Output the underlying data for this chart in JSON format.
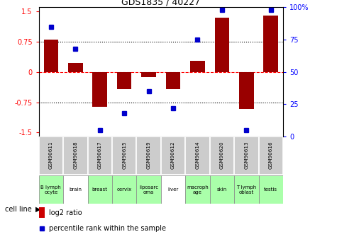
{
  "title": "GDS1835 / 40227",
  "samples": [
    "GSM90611",
    "GSM90618",
    "GSM90617",
    "GSM90615",
    "GSM90619",
    "GSM90612",
    "GSM90614",
    "GSM90620",
    "GSM90613",
    "GSM90616"
  ],
  "cell_lines": [
    "B lymph\nocyte",
    "brain",
    "breast",
    "cervix",
    "liposarc\noma",
    "liver",
    "macroph\nage",
    "skin",
    "T lymph\noblast",
    "testis"
  ],
  "cell_line_colors": [
    "#aaffaa",
    "#ffffff",
    "#aaffaa",
    "#aaffaa",
    "#aaffaa",
    "#ffffff",
    "#aaffaa",
    "#aaffaa",
    "#aaffaa",
    "#aaffaa"
  ],
  "log2_ratio": [
    0.8,
    0.22,
    -0.87,
    -0.42,
    -0.13,
    -0.42,
    0.28,
    1.35,
    -0.92,
    1.4
  ],
  "percentile_rank": [
    85,
    68,
    5,
    18,
    35,
    22,
    75,
    98,
    5,
    98
  ],
  "ylim": [
    -1.6,
    1.6
  ],
  "right_ylim": [
    0,
    100
  ],
  "bar_color": "#990000",
  "dot_color": "#0000CC",
  "legend_bar_color": "#CC0000",
  "legend_dot_color": "#0000CC",
  "cell_label": "cell line",
  "legend_ratio": "log2 ratio",
  "legend_pct": "percentile rank within the sample"
}
